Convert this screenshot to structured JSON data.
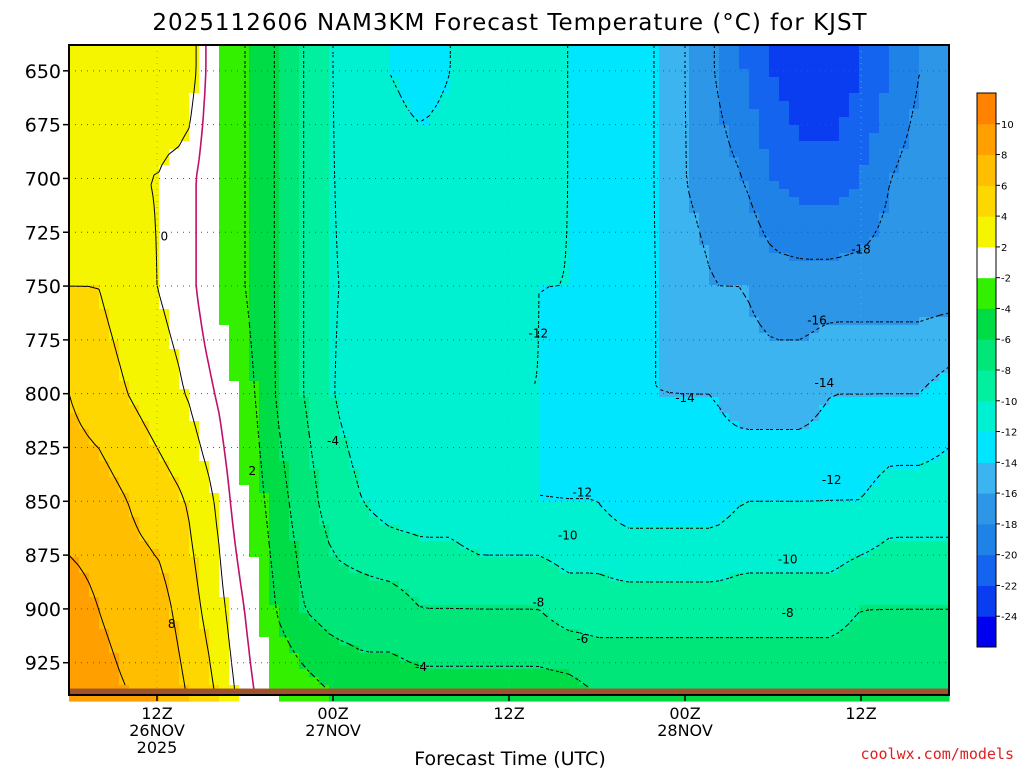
{
  "chart_data": {
    "type": "heatmap",
    "title": "2025112606 NAM3KM Forecast Temperature (°C) for KJST",
    "xlabel": "Forecast Time (UTC)",
    "ylabel": "",
    "source_label": "coolwx.com/models",
    "x_unit": "hours after 2025-11-26 06Z",
    "xlim": [
      0,
      60
    ],
    "ylim": [
      940,
      638
    ],
    "y_ticks": [
      650,
      675,
      700,
      725,
      750,
      775,
      800,
      825,
      850,
      875,
      900,
      925
    ],
    "x_ticks": [
      {
        "x": 6,
        "line1": "12Z",
        "line2": "26NOV",
        "line3": "2025"
      },
      {
        "x": 18,
        "line1": "00Z",
        "line2": "27NOV",
        "line3": ""
      },
      {
        "x": 30,
        "line1": "12Z",
        "line2": "",
        "line3": ""
      },
      {
        "x": 42,
        "line1": "00Z",
        "line2": "28NOV",
        "line3": ""
      },
      {
        "x": 54,
        "line1": "12Z",
        "line2": "",
        "line3": ""
      }
    ],
    "grid": true,
    "colorbar": {
      "position": "right",
      "levels": [
        -26,
        -24,
        -22,
        -20,
        -18,
        -16,
        -14,
        -12,
        -10,
        -8,
        -6,
        -4,
        -2,
        2,
        4,
        6,
        8,
        10,
        12
      ],
      "tick_labels": [
        "-24",
        "-22",
        "-20",
        "-18",
        "-16",
        "-14",
        "-12",
        "-10",
        "-8",
        "-6",
        "-4",
        "-2",
        "2",
        "4",
        "6",
        "8",
        "10"
      ],
      "colors": [
        "#0000f0",
        "#0a3cf0",
        "#1464f0",
        "#1e82e6",
        "#2d96e6",
        "#3cb4f0",
        "#00e6ff",
        "#00f0d2",
        "#00f0a0",
        "#00e678",
        "#00dc46",
        "#32f000",
        "#ffffff",
        "#f5f500",
        "#ffd700",
        "#ffbe00",
        "#ffa000",
        "#ff8200"
      ]
    },
    "contour_labels": [
      {
        "text": "0",
        "x": 6.5,
        "p": 727
      },
      {
        "text": "2",
        "x": 12.5,
        "p": 836
      },
      {
        "text": "8",
        "x": 7.0,
        "p": 907
      },
      {
        "text": "-4",
        "x": 18.0,
        "p": 822
      },
      {
        "text": "-4",
        "x": 24.0,
        "p": 927
      },
      {
        "text": "-12",
        "x": 32.0,
        "p": 772
      },
      {
        "text": "-12",
        "x": 35.0,
        "p": 846
      },
      {
        "text": "-10",
        "x": 34.0,
        "p": 866
      },
      {
        "text": "-8",
        "x": 32.0,
        "p": 897
      },
      {
        "text": "-6",
        "x": 35.0,
        "p": 914
      },
      {
        "text": "-14",
        "x": 42.0,
        "p": 802
      },
      {
        "text": "-18",
        "x": 54.0,
        "p": 733
      },
      {
        "text": "-16",
        "x": 51.0,
        "p": 766
      },
      {
        "text": "-14",
        "x": 51.5,
        "p": 795
      },
      {
        "text": "-12",
        "x": 52.0,
        "p": 840
      },
      {
        "text": "-10",
        "x": 49.0,
        "p": 877
      },
      {
        "text": "-8",
        "x": 49.0,
        "p": 902
      }
    ],
    "series": [
      {
        "p": 650,
        "values": [
          2,
          2,
          3,
          3,
          4,
          -2,
          -4,
          -6,
          -8,
          -10,
          -12,
          -12,
          -13,
          -12,
          -11,
          -11,
          -11,
          -12,
          -13,
          -13,
          -14,
          -16,
          -18,
          -20,
          -22,
          -24,
          -24,
          -22,
          -20,
          -18,
          -18
        ]
      },
      {
        "p": 700,
        "values": [
          2,
          2,
          2,
          2,
          1,
          -2,
          -4,
          -6,
          -8,
          -10,
          -11,
          -11,
          -11,
          -11,
          -10,
          -11,
          -11,
          -12,
          -13,
          -13,
          -14,
          -16,
          -17,
          -18,
          -20,
          -21,
          -21,
          -20,
          -18,
          -17,
          -16
        ]
      },
      {
        "p": 750,
        "values": [
          4,
          4,
          3,
          2,
          1,
          -2,
          -4,
          -6,
          -8,
          -10,
          -10,
          -11,
          -11,
          -11,
          -11,
          -11,
          -12,
          -12,
          -13,
          -13,
          -14,
          -15,
          -16,
          -16,
          -17,
          -17,
          -17,
          -17,
          -17,
          -17,
          -17
        ]
      },
      {
        "p": 800,
        "values": [
          6,
          5,
          4,
          3,
          2,
          0,
          -3,
          -6,
          -8,
          -10,
          -11,
          -11,
          -12,
          -12,
          -12,
          -12,
          -12,
          -13,
          -13,
          -14,
          -14,
          -14,
          -14,
          -15,
          -15,
          -15,
          -14,
          -14,
          -14,
          -14,
          -13
        ]
      },
      {
        "p": 850,
        "values": [
          7,
          7,
          6,
          5,
          4,
          2,
          -2,
          -5,
          -7,
          -9,
          -10,
          -11,
          -11,
          -11,
          -12,
          -12,
          -12,
          -12,
          -12,
          -13,
          -13,
          -13,
          -13,
          -12,
          -12,
          -12,
          -12,
          -12,
          -11,
          -11,
          -11
        ]
      },
      {
        "p": 900,
        "values": [
          9,
          8,
          7,
          7,
          5,
          3,
          0,
          -4,
          -6,
          -7,
          -7,
          -7,
          -8,
          -8,
          -8,
          -8,
          -8,
          -9,
          -9,
          -9,
          -9,
          -9,
          -9,
          -9,
          -9,
          -9,
          -9,
          -8,
          -8,
          -8,
          -8
        ]
      },
      {
        "p": 940,
        "values": [
          10,
          9,
          8,
          8,
          6,
          4,
          1,
          -2,
          -3,
          -4,
          -5,
          -5,
          -5,
          -5,
          -5,
          -5,
          -5,
          -5,
          -6,
          -6,
          -6,
          -6,
          -6,
          -6,
          -6,
          -6,
          -6,
          -6,
          -6,
          -6,
          -6
        ]
      }
    ]
  }
}
